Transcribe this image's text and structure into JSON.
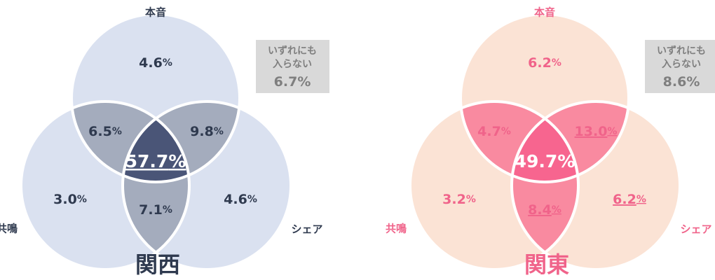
{
  "panels": [
    {
      "title": "関西",
      "colors": {
        "light": "#dae1f0",
        "pair": "#a4acbd",
        "center": "#4a5577",
        "text": "#2f3a4f",
        "centerText": "#ffffff"
      },
      "sets": {
        "top": "本音",
        "left": "共鳴",
        "right": "シェア"
      },
      "regions": {
        "top": {
          "value": "4.6",
          "unit": "%"
        },
        "top_left": {
          "value": "6.5",
          "unit": "%"
        },
        "top_right": {
          "value": "9.8",
          "unit": "%"
        },
        "all": {
          "value": "57.7",
          "unit": "%",
          "underline": true
        },
        "left": {
          "value": "3.0",
          "unit": "%"
        },
        "right": {
          "value": "4.6",
          "unit": "%"
        },
        "left_right": {
          "value": "7.1",
          "unit": "%"
        }
      },
      "none": {
        "lines": [
          "いずれにも",
          "入らない"
        ],
        "value": "6.7",
        "unit": "%"
      }
    },
    {
      "title": "関東",
      "colors": {
        "light": "#fbe3d5",
        "pair": "#f98aa0",
        "center": "#f7658f",
        "text": "#f0638a",
        "centerText": "#ffffff"
      },
      "sets": {
        "top": "本音",
        "left": "共鳴",
        "right": "シェア"
      },
      "regions": {
        "top": {
          "value": "6.2",
          "unit": "%"
        },
        "top_left": {
          "value": "4.7",
          "unit": "%"
        },
        "top_right": {
          "value": "13.0",
          "unit": "%",
          "underline": true
        },
        "all": {
          "value": "49.7",
          "unit": "%"
        },
        "left": {
          "value": "3.2",
          "unit": "%"
        },
        "right": {
          "value": "6.2",
          "unit": "%",
          "underline": true
        },
        "left_right": {
          "value": "8.4",
          "unit": "%",
          "underline": true
        }
      },
      "none": {
        "lines": [
          "いずれにも",
          "入らない"
        ],
        "value": "8.6",
        "unit": "%"
      }
    }
  ]
}
